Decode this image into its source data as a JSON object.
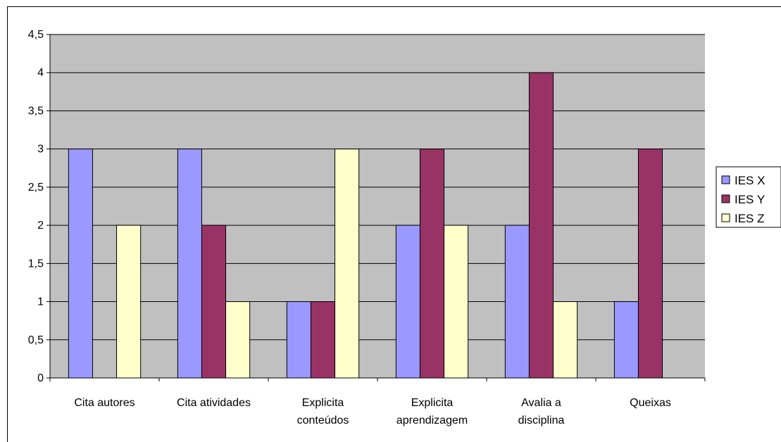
{
  "chart_data": {
    "type": "bar",
    "title": "",
    "xlabel": "",
    "ylabel": "",
    "categories": [
      [
        "Cita autores"
      ],
      [
        "Cita atividades"
      ],
      [
        "Explicita",
        "conteúdos"
      ],
      [
        "Explicita",
        "aprendizagem"
      ],
      [
        "Avalia a",
        "disciplina"
      ],
      [
        "Queixas"
      ]
    ],
    "series": [
      {
        "name": "IES X",
        "color": "#9999ff",
        "values": [
          3,
          3,
          1,
          2,
          2,
          1
        ]
      },
      {
        "name": "IES Y",
        "color": "#993366",
        "values": [
          0,
          2,
          1,
          3,
          4,
          3
        ]
      },
      {
        "name": "IES Z",
        "color": "#ffffcc",
        "values": [
          2,
          1,
          3,
          2,
          1,
          0
        ]
      }
    ],
    "ylim": [
      0,
      4.5
    ],
    "yticks": [
      "0",
      "0,5",
      "1",
      "1,5",
      "2",
      "2,5",
      "3",
      "3,5",
      "4",
      "4,5"
    ],
    "grid": true,
    "plot_background": "#c0c0c0",
    "legend_position": "right"
  }
}
